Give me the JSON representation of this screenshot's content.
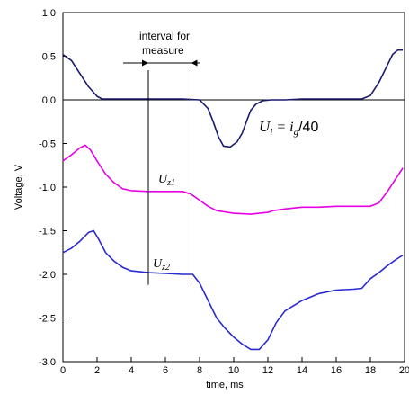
{
  "chart_data": {
    "type": "line",
    "title": "",
    "xlabel": "time, ms",
    "ylabel": "Voltage, V",
    "xlim": [
      0,
      20
    ],
    "ylim": [
      -3.0,
      1.0
    ],
    "x_ticks": [
      0,
      2,
      4,
      6,
      8,
      10,
      12,
      14,
      16,
      18,
      20
    ],
    "x_tick_labels": [
      "0",
      "2",
      "4",
      "6",
      "8",
      "10",
      "12",
      "14",
      "16",
      "18",
      "20"
    ],
    "y_ticks": [
      1.0,
      0.5,
      0.0,
      -0.5,
      -1.0,
      -1.5,
      -2.0,
      -2.5,
      -3.0
    ],
    "y_tick_labels": [
      "1.0",
      "0.5",
      "0.0",
      "-0.5",
      "-1.0",
      "-1.5",
      "-2.0",
      "-2.5",
      "-3.0"
    ],
    "grid": false,
    "reference_line_y": 0.0,
    "annotations": {
      "interval_text_line1": "interval for",
      "interval_text_line2": "measure",
      "interval_start": 5.0,
      "interval_end": 7.5,
      "ui_eq_U": "U",
      "ui_eq_sub": "i",
      "ui_eq_mid": " = i",
      "ui_eq_sub2": "g",
      "ui_eq_tail": "/40",
      "uz1_U": "U",
      "uz1_sub": "z1",
      "uz2_U": "U",
      "uz2_sub": "z2"
    },
    "series": [
      {
        "color": "#1a1a6e",
        "x": [
          0,
          0.5,
          1.0,
          1.5,
          2.0,
          2.3,
          3,
          4,
          5,
          6,
          7,
          8,
          8.5,
          8.8,
          9.1,
          9.4,
          9.8,
          10.2,
          10.5,
          10.8,
          11.0,
          11.3,
          11.7,
          12.2,
          13,
          14,
          16,
          17.5,
          18.0,
          18.5,
          19.0,
          19.3,
          19.6,
          19.9
        ],
        "values": [
          0.52,
          0.45,
          0.3,
          0.15,
          0.04,
          0.01,
          0.01,
          0.01,
          0.01,
          0.01,
          0.01,
          0.0,
          -0.1,
          -0.25,
          -0.42,
          -0.53,
          -0.54,
          -0.48,
          -0.38,
          -0.22,
          -0.12,
          -0.05,
          -0.01,
          0.0,
          0.0,
          0.01,
          0.01,
          0.01,
          0.05,
          0.2,
          0.4,
          0.52,
          0.57,
          0.57
        ]
      },
      {
        "color": "#e600e6",
        "x": [
          0,
          0.5,
          1.0,
          1.3,
          1.6,
          2.0,
          2.5,
          3.0,
          3.5,
          4.0,
          5.0,
          6.0,
          7.0,
          7.5,
          8.0,
          8.5,
          9.0,
          10.0,
          11.0,
          12.0,
          12.3,
          13.0,
          14.0,
          15.0,
          16.0,
          17.0,
          18.0,
          18.5,
          19.0,
          19.5,
          19.9
        ],
        "values": [
          -0.7,
          -0.63,
          -0.55,
          -0.52,
          -0.57,
          -0.7,
          -0.85,
          -0.95,
          -1.02,
          -1.04,
          -1.05,
          -1.05,
          -1.05,
          -1.08,
          -1.15,
          -1.22,
          -1.27,
          -1.3,
          -1.31,
          -1.29,
          -1.27,
          -1.25,
          -1.23,
          -1.23,
          -1.22,
          -1.22,
          -1.22,
          -1.18,
          -1.05,
          -0.9,
          -0.78
        ]
      },
      {
        "color": "#2a2ad0",
        "x": [
          0,
          0.5,
          1.0,
          1.5,
          1.8,
          2.1,
          2.5,
          3.0,
          3.5,
          4.0,
          5.0,
          6.0,
          7.0,
          7.6,
          8.0,
          8.5,
          9.0,
          9.5,
          10.0,
          10.5,
          11.0,
          11.5,
          12.0,
          12.5,
          13.0,
          14.0,
          15.0,
          16.0,
          17.0,
          17.5,
          18.0,
          18.5,
          19.0,
          19.5,
          19.9
        ],
        "values": [
          -1.75,
          -1.7,
          -1.62,
          -1.52,
          -1.5,
          -1.6,
          -1.75,
          -1.85,
          -1.92,
          -1.96,
          -1.98,
          -1.99,
          -2.0,
          -2.0,
          -2.1,
          -2.3,
          -2.5,
          -2.62,
          -2.72,
          -2.8,
          -2.86,
          -2.86,
          -2.75,
          -2.55,
          -2.42,
          -2.3,
          -2.22,
          -2.18,
          -2.17,
          -2.16,
          -2.05,
          -1.98,
          -1.9,
          -1.83,
          -1.78
        ]
      }
    ]
  }
}
